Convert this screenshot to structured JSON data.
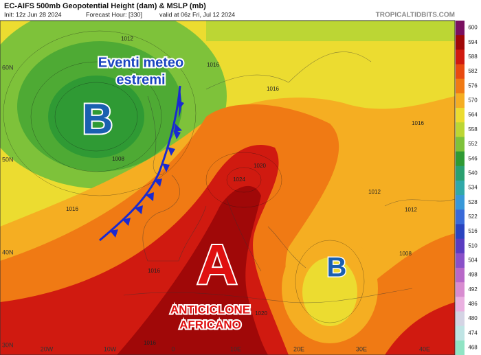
{
  "header": {
    "title": "EC-AIFS 500mb Geopotential Height (dam) & MSLP (mb)",
    "init": "Init: 12z Jun 28 2024",
    "forecast": "Forecast Hour: [330]",
    "valid": "valid at 06z Fri, Jul 12 2024",
    "brand": "TROPICALTIDBITS.COM"
  },
  "colorbar": {
    "labels": [
      600,
      594,
      588,
      582,
      576,
      570,
      564,
      558,
      552,
      546,
      540,
      534,
      528,
      522,
      516,
      510,
      504,
      498,
      492,
      486,
      480,
      474,
      468
    ],
    "colors": [
      "#7a1060",
      "#a00808",
      "#d01a10",
      "#e84a10",
      "#f07a14",
      "#f5ae22",
      "#ecdc30",
      "#bcd634",
      "#7ec23a",
      "#2f9a34",
      "#2aa070",
      "#30a8a8",
      "#3898d8",
      "#3a6ad8",
      "#2a44c0",
      "#5a3cc0",
      "#8a50c8",
      "#b868c8",
      "#d88cd0",
      "#eab0e0",
      "#d4d4e4",
      "#bfe4e4",
      "#90e4c4"
    ]
  },
  "map": {
    "lat_labels": [
      "60N",
      "50N",
      "40N",
      "30N"
    ],
    "lon_labels": [
      "20W",
      "10W",
      "0",
      "10E",
      "20E",
      "30E",
      "40E"
    ],
    "isobar_labels": [
      "1012",
      "1008",
      "1016",
      "1016",
      "1016",
      "1016",
      "1020",
      "1024",
      "1012",
      "1012",
      "1016",
      "1016",
      "1008",
      "1020"
    ]
  },
  "annotations": {
    "warning_line1": "Eventi meteo",
    "warning_line2": "estremi",
    "low_west": "B",
    "high": "A",
    "high_name_line1": "ANTICICLONE",
    "high_name_line2": "AFRICANO",
    "low_east": "B"
  }
}
